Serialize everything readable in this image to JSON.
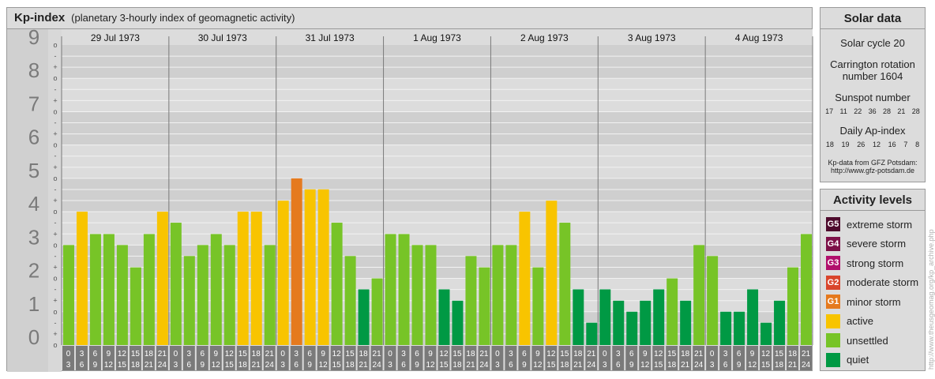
{
  "title": {
    "main": "Kp-index",
    "subtitle": "(planetary 3-hourly index of geomagnetic activity)"
  },
  "chart_data": {
    "type": "bar",
    "title": "Kp-index",
    "subtitle": "(planetary 3-hourly index of geomagnetic activity)",
    "ylim": [
      0,
      9
    ],
    "y_ticks": [
      "0",
      "1",
      "2",
      "3",
      "4",
      "5",
      "6",
      "7",
      "8",
      "9"
    ],
    "y_minor_ticks": [
      "o",
      "+",
      "-",
      "o",
      "+",
      "-",
      "o",
      "+",
      "-",
      "o",
      "+",
      "-",
      "o",
      "+",
      "-",
      "o",
      "+",
      "-",
      "o",
      "+",
      "-",
      "o",
      "+",
      "-",
      "o",
      "+",
      "-",
      "o"
    ],
    "days": [
      "29 Jul 1973",
      "30 Jul 1973",
      "31 Jul 1973",
      "1 Aug 1973",
      "2 Aug 1973",
      "3 Aug 1973",
      "4 Aug 1973"
    ],
    "intervals": [
      {
        "start": "0",
        "end": "3"
      },
      {
        "start": "3",
        "end": "6"
      },
      {
        "start": "6",
        "end": "9"
      },
      {
        "start": "9",
        "end": "12"
      },
      {
        "start": "12",
        "end": "15"
      },
      {
        "start": "15",
        "end": "18"
      },
      {
        "start": "18",
        "end": "21"
      },
      {
        "start": "21",
        "end": "24"
      }
    ],
    "values": [
      3.0,
      4.0,
      3.33,
      3.33,
      3.0,
      2.33,
      3.33,
      4.0,
      3.67,
      2.67,
      3.0,
      3.33,
      3.0,
      4.0,
      4.0,
      3.0,
      4.33,
      5.0,
      4.67,
      4.67,
      3.67,
      2.67,
      1.67,
      2.0,
      3.33,
      3.33,
      3.0,
      3.0,
      1.67,
      1.33,
      2.67,
      2.33,
      3.0,
      3.0,
      4.0,
      2.33,
      4.33,
      3.67,
      1.67,
      0.67,
      1.67,
      1.33,
      1.0,
      1.33,
      1.67,
      2.0,
      1.33,
      3.0,
      2.67,
      1.0,
      1.0,
      1.67,
      0.67,
      1.33,
      2.33,
      3.33
    ],
    "colors": {
      "quiet": "#009944",
      "unsettled": "#77c427",
      "active": "#f8c400",
      "minor": "#e57a1e"
    }
  },
  "solar": {
    "title": "Solar data",
    "cycle": "Solar cycle 20",
    "carrington_1": "Carrington rotation",
    "carrington_2": "number 1604",
    "sunspot_label": "Sunspot number",
    "sunspot_values": [
      "17",
      "11",
      "22",
      "36",
      "28",
      "21",
      "28"
    ],
    "ap_label": "Daily Ap-index",
    "ap_values": [
      "18",
      "19",
      "26",
      "12",
      "16",
      "7",
      "8"
    ],
    "source_1": "Kp-data from GFZ Potsdam:",
    "source_2": "http://www.gfz-potsdam.de"
  },
  "levels": {
    "title": "Activity levels",
    "items": [
      {
        "code": "G5",
        "label": "extreme storm",
        "color": "#4e0b2d"
      },
      {
        "code": "G4",
        "label": "severe storm",
        "color": "#7d1048"
      },
      {
        "code": "G3",
        "label": "strong storm",
        "color": "#b10f6c"
      },
      {
        "code": "G2",
        "label": "moderate storm",
        "color": "#d9452c"
      },
      {
        "code": "G1",
        "label": "minor storm",
        "color": "#e57a1e"
      },
      {
        "code": "",
        "label": "active",
        "color": "#f8c400"
      },
      {
        "code": "",
        "label": "unsettled",
        "color": "#77c427"
      },
      {
        "code": "",
        "label": "quiet",
        "color": "#009944"
      }
    ]
  },
  "watermark": "http://www.theusgeomag.org/kp_archive.php"
}
